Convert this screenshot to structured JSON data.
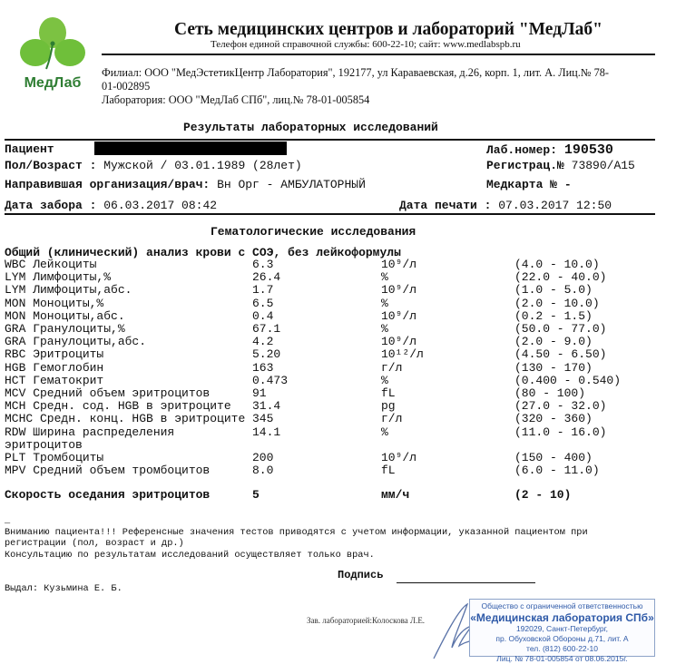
{
  "header": {
    "logo_text": "МедЛаб",
    "title": "Сеть медицинских центров и лабораторий \"МедЛаб\"",
    "phone_line": "Телефон единой справочной службы: 600-22-10; сайт: www.medlabspb.ru",
    "branch_line1": "Филиал: ООО \"МедЭстетикЦентр Лаборатория\", 192177, ул Караваевская, д.26, корп. 1, лит. А. Лиц.№ 78-",
    "branch_line2": "01-002895",
    "lab_line": "Лаборатория: ООО \"МедЛаб СПб\", лиц.№ 78-01-005854"
  },
  "report_title": "Результаты лабораторных исследований",
  "patient": {
    "patient_label": "Пациент",
    "sex_age_label": "Пол/Возраст :",
    "sex_age_value": "Мужской / 03.01.1989 (28лет)",
    "referrer_label": "Направившая организация/врач:",
    "referrer_value": "Вн Орг - АМБУЛАТОРНЫЙ",
    "collect_label": "Дата забора :",
    "collect_value": "06.03.2017 08:42",
    "lab_no_label": "Лаб.номер:",
    "lab_no_value": "190530",
    "reg_label": "Регистрац.№",
    "reg_value": "73890/А15",
    "card_label": "Медкарта №",
    "card_value": "-",
    "print_label": "Дата печати :",
    "print_value": "07.03.2017 12:50"
  },
  "section_title": "Гематологические исследования",
  "panel_title": "Общий (клинический) анализ крови с СОЭ, без лейкоформулы",
  "results": [
    {
      "name": "WBC Лейкоциты",
      "value": "6.3",
      "unit": "10⁹/л",
      "range": "(4.0 - 10.0)"
    },
    {
      "name": "LYM Лимфоциты,%",
      "value": "26.4",
      "unit": "%",
      "range": "(22.0 - 40.0)"
    },
    {
      "name": "LYM Лимфоциты,абс.",
      "value": "1.7",
      "unit": "10⁹/л",
      "range": "(1.0 - 5.0)"
    },
    {
      "name": "MON Моноциты,%",
      "value": "6.5",
      "unit": "%",
      "range": "(2.0 - 10.0)"
    },
    {
      "name": "MON Моноциты,абс.",
      "value": "0.4",
      "unit": "10⁹/л",
      "range": "(0.2 - 1.5)"
    },
    {
      "name": "GRA Гранулоциты,%",
      "value": "67.1",
      "unit": "%",
      "range": "(50.0 - 77.0)"
    },
    {
      "name": "GRA Гранулоциты,абс.",
      "value": "4.2",
      "unit": "10⁹/л",
      "range": "(2.0 - 9.0)"
    },
    {
      "name": "RBC Эритроциты",
      "value": "5.20",
      "unit": "10¹²/л",
      "range": "(4.50 - 6.50)"
    },
    {
      "name": "HGB Гемоглобин",
      "value": "163",
      "unit": "г/л",
      "range": "(130 - 170)"
    },
    {
      "name": "HCT Гематокрит",
      "value": "0.473",
      "unit": "%",
      "range": "(0.400 - 0.540)"
    },
    {
      "name": "MCV Средний объем эритроцитов",
      "value": "91",
      "unit": "fL",
      "range": "(80 - 100)"
    },
    {
      "name": "MCH Средн. сод. HGB в эритроците",
      "value": "31.4",
      "unit": "pg",
      "range": "(27.0 - 32.0)"
    },
    {
      "name": "MCHC Средн. конц. HGB в эритроците",
      "value": "345",
      "unit": "г/л",
      "range": "(320 - 360)"
    },
    {
      "name": "RDW Ширина распределения эритроцитов",
      "value": "14.1",
      "unit": "%",
      "range": "(11.0 - 16.0)"
    },
    {
      "name": "PLT Тромбоциты",
      "value": "200",
      "unit": "10⁹/л",
      "range": "(150 - 400)"
    },
    {
      "name": "MPV Средний объем тромбоцитов",
      "value": "8.0",
      "unit": "fL",
      "range": "(6.0 - 11.0)"
    }
  ],
  "esr": {
    "name": "Скорость оседания эритроцитов",
    "value": "5",
    "unit": "мм/ч",
    "range": "(2 - 10)"
  },
  "notes": {
    "dash": "_",
    "line1": "Вниманию пациента!!! Референсные значения тестов приводятся с учетом информации, указанной пациентом при",
    "line2": "регистрации (пол, возраст и др.)",
    "line3": "Консультацию по результатам исследований осуществляет только врач."
  },
  "signature_label": "Подпись",
  "issued_by": "Выдал: Кузьмина Е. Б.",
  "lab_head": "Зав. лабораторией:Колоскова Л.Е.",
  "stamp": {
    "line1": "Общество с ограниченной ответственностью",
    "line2": "«Медицинская лаборатория СПб»",
    "line3": "192029, Санкт-Петербург,",
    "line4": "пр. Обуховской Обороны д.71, лит. А",
    "line5": "тел. (812) 600-22-10",
    "line6": "Лиц. № 78-01-005854 от 08.06.2015г."
  },
  "colors": {
    "logo_green": "#6fbf3a",
    "logo_dark": "#2e7d32",
    "stamp_blue": "#2f5aa8"
  }
}
